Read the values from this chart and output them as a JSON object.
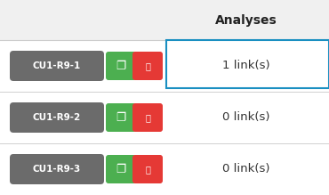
{
  "title": "Analyses",
  "title_fontsize": 10,
  "title_fontweight": "bold",
  "title_color": "#222222",
  "rows": [
    {
      "label": "CU1-R9-1",
      "value": "1 link(s)",
      "highlighted": true
    },
    {
      "label": "CU1-R9-2",
      "value": "0 link(s)",
      "highlighted": false
    },
    {
      "label": "CU1-R9-3",
      "value": "0 link(s)",
      "highlighted": false
    }
  ],
  "bg_color": "#f0f0f0",
  "pill_bg": "#6b6b6b",
  "pill_text_color": "#ffffff",
  "pill_fontsize": 7.5,
  "green_color": "#4caf50",
  "red_color": "#e53935",
  "icon_color": "#ffffff",
  "value_color": "#333333",
  "value_fontsize": 9.5,
  "highlight_border": "#1a8fc1",
  "highlight_bg": "#ffffff",
  "divider_color": "#d0d0d0",
  "header_divider_color": "#cccccc",
  "header_bg": "#f0f0f0",
  "row_bg": "#ffffff"
}
